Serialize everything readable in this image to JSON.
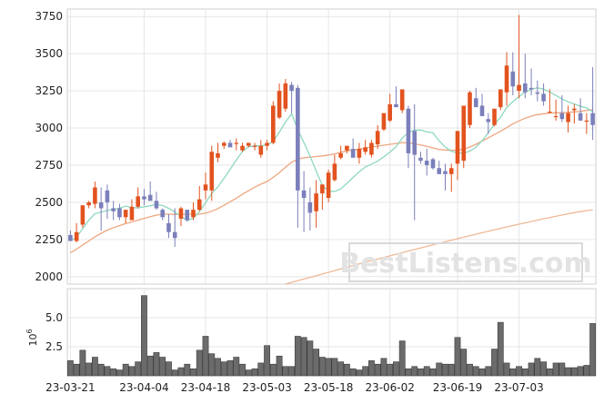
{
  "chart_data": [
    {
      "type": "candlestick",
      "title": "",
      "watermark": "BestListens.com",
      "x_ticks": [
        "23-03-21",
        "23-04-04",
        "23-04-18",
        "23-05-03",
        "23-05-18",
        "23-06-02",
        "23-06-19",
        "23-07-03"
      ],
      "ylim": [
        1950,
        3800
      ],
      "y_ticks": [
        2000,
        2250,
        2500,
        2750,
        3000,
        3250,
        3500,
        3750
      ],
      "grid": true,
      "up_color": "#e2531f",
      "down_color": "#7b7fba",
      "ohlc_open": [
        2280,
        2240,
        2350,
        2480,
        2490,
        2500,
        2580,
        2460,
        2460,
        2400,
        2380,
        2470,
        2540,
        2550,
        2510,
        2450,
        2360,
        2300,
        2390,
        2450,
        2400,
        2450,
        2580,
        2580,
        2800,
        2880,
        2900,
        2900,
        2850,
        2880,
        2880,
        2820,
        2880,
        2900,
        3070,
        3130,
        3290,
        3270,
        2580,
        2500,
        2440,
        2560,
        2530,
        2650,
        2800,
        2850,
        2860,
        2800,
        2840,
        2820,
        2890,
        2990,
        3050,
        3160,
        3120,
        3130,
        2980,
        2800,
        2780,
        2790,
        2730,
        2710,
        2690,
        2760,
        2780,
        3020,
        3200,
        3150,
        3060,
        3020,
        3140,
        3240,
        3380,
        3250,
        3300,
        3270,
        3240,
        3230,
        3110,
        3080,
        3100,
        3040,
        3120,
        3100,
        3050,
        3100
      ],
      "ohlc_high": [
        2310,
        2360,
        2480,
        2510,
        2640,
        2600,
        2620,
        2510,
        2490,
        2450,
        2520,
        2600,
        2590,
        2640,
        2570,
        2460,
        2420,
        2460,
        2470,
        2450,
        2500,
        2610,
        2700,
        2880,
        2900,
        2910,
        2920,
        2930,
        2900,
        2900,
        2900,
        2920,
        2920,
        3180,
        3300,
        3330,
        3310,
        3290,
        2710,
        2600,
        2650,
        2610,
        2720,
        2820,
        2880,
        2880,
        2930,
        2900,
        2920,
        2920,
        3020,
        3100,
        3230,
        3280,
        3250,
        3150,
        3160,
        2840,
        2860,
        2800,
        2780,
        2760,
        2760,
        2790,
        3070,
        3250,
        3270,
        3230,
        3100,
        3120,
        3170,
        3510,
        3510,
        3760,
        3500,
        3400,
        3320,
        3300,
        3260,
        3190,
        3220,
        3150,
        3160,
        3200,
        3100,
        3410
      ],
      "ohlc_low": [
        2250,
        2230,
        2330,
        2460,
        2460,
        2310,
        2390,
        2380,
        2380,
        2360,
        2380,
        2460,
        2480,
        2520,
        2450,
        2380,
        2260,
        2200,
        2340,
        2370,
        2380,
        2440,
        2520,
        2510,
        2770,
        2860,
        2880,
        2850,
        2840,
        2870,
        2850,
        2800,
        2850,
        2890,
        3060,
        3110,
        3100,
        2330,
        2300,
        2310,
        2330,
        2450,
        2500,
        2640,
        2790,
        2830,
        2840,
        2760,
        2820,
        2800,
        2860,
        2980,
        3040,
        3140,
        3100,
        2730,
        2380,
        2760,
        2680,
        2720,
        2690,
        2580,
        2570,
        2650,
        2730,
        3000,
        3170,
        3100,
        2960,
        3010,
        3120,
        3150,
        3220,
        3200,
        3200,
        3220,
        3180,
        3150,
        3100,
        3050,
        3040,
        2970,
        3030,
        3050,
        2960,
        2920
      ],
      "ohlc_close": [
        2240,
        2300,
        2480,
        2500,
        2600,
        2460,
        2500,
        2440,
        2400,
        2450,
        2470,
        2540,
        2520,
        2510,
        2460,
        2400,
        2300,
        2260,
        2460,
        2380,
        2450,
        2520,
        2620,
        2840,
        2830,
        2900,
        2870,
        2900,
        2880,
        2900,
        2880,
        2880,
        2900,
        3150,
        3250,
        3300,
        3250,
        2580,
        2530,
        2430,
        2560,
        2620,
        2700,
        2760,
        2830,
        2880,
        2800,
        2860,
        2870,
        2900,
        2980,
        3100,
        3160,
        3140,
        3260,
        2830,
        2820,
        2780,
        2750,
        2730,
        2690,
        2690,
        2730,
        2980,
        3150,
        3240,
        3140,
        3080,
        3040,
        3130,
        3260,
        3420,
        3280,
        3290,
        3240,
        3260,
        3230,
        3180,
        3110,
        3080,
        3060,
        3100,
        3130,
        3050,
        3050,
        3020
      ],
      "ma_short": [
        2240,
        2265,
        2323,
        2380,
        2424,
        2434,
        2445,
        2455,
        2460,
        2475,
        2465,
        2462,
        2470,
        2476,
        2487,
        2478,
        2460,
        2435,
        2404,
        2378,
        2394,
        2438,
        2498,
        2560,
        2604,
        2662,
        2722,
        2784,
        2842,
        2874,
        2880,
        2880,
        2888,
        2910,
        2972,
        3040,
        3096,
        2990,
        2902,
        2810,
        2710,
        2614,
        2575,
        2574,
        2590,
        2628,
        2667,
        2706,
        2738,
        2757,
        2778,
        2806,
        2838,
        2874,
        2932,
        2970,
        2986,
        2986,
        2974,
        2968,
        2914,
        2872,
        2844,
        2832,
        2830,
        2845,
        2872,
        2914,
        2968,
        3026,
        3072,
        3138,
        3177,
        3211,
        3243,
        3261,
        3270,
        3262,
        3243,
        3219,
        3196,
        3176,
        3162,
        3146,
        3135,
        3108
      ],
      "ma_long": [
        2160,
        2185,
        2213,
        2240,
        2268,
        2292,
        2313,
        2330,
        2343,
        2358,
        2368,
        2380,
        2392,
        2403,
        2414,
        2420,
        2420,
        2419,
        2420,
        2420,
        2420,
        2421,
        2427,
        2440,
        2458,
        2480,
        2504,
        2528,
        2554,
        2578,
        2602,
        2622,
        2640,
        2668,
        2700,
        2736,
        2770,
        2790,
        2800,
        2804,
        2808,
        2812,
        2818,
        2826,
        2836,
        2846,
        2852,
        2858,
        2865,
        2872,
        2878,
        2884,
        2890,
        2896,
        2902,
        2900,
        2894,
        2886,
        2876,
        2866,
        2856,
        2852,
        2850,
        2852,
        2858,
        2872,
        2890,
        2912,
        2934,
        2956,
        2978,
        3002,
        3028,
        3048,
        3066,
        3080,
        3090,
        3096,
        3100,
        3102,
        3104,
        3105,
        3108,
        3112,
        3118,
        3125
      ],
      "ma_200": {
        "from_index": 35,
        "start": 1950,
        "end": 2450
      },
      "volume_unit": "10^6",
      "volume_ylim": [
        0,
        7.5
      ],
      "volume_y_ticks": [
        "2.5",
        "5.0"
      ],
      "volume": [
        1.3,
        1.0,
        2.2,
        1.1,
        1.6,
        1.0,
        0.8,
        0.6,
        0.5,
        1.0,
        0.8,
        1.2,
        6.9,
        1.7,
        2.0,
        1.6,
        1.2,
        0.5,
        0.7,
        1.0,
        0.6,
        2.2,
        3.4,
        1.9,
        1.5,
        1.2,
        1.3,
        1.6,
        1.0,
        0.5,
        0.6,
        1.1,
        2.6,
        1.0,
        1.7,
        0.8,
        0.8,
        3.4,
        3.3,
        3.0,
        2.3,
        1.6,
        1.5,
        1.5,
        1.2,
        1.0,
        0.6,
        0.5,
        0.8,
        1.3,
        1.0,
        1.5,
        1.0,
        1.2,
        3.0,
        0.6,
        0.8,
        0.6,
        0.8,
        0.6,
        1.1,
        1.0,
        1.0,
        3.3,
        2.3,
        1.0,
        0.8,
        0.6,
        0.8,
        2.3,
        4.6,
        1.1,
        0.6,
        0.8,
        0.6,
        1.1,
        1.5,
        1.2,
        0.6,
        1.1,
        1.1,
        0.7,
        0.7,
        0.8,
        0.9,
        4.5
      ]
    }
  ]
}
